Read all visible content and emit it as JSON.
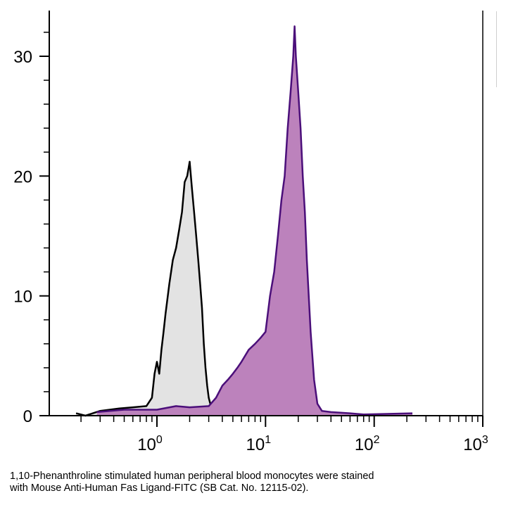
{
  "caption": {
    "line1": "1,10-Phenanthroline stimulated human peripheral blood monocytes were stained",
    "line2": "with Mouse Anti-Human Fas Ligand-FITC (SB Cat. No. 12115-02)."
  },
  "chart_data": {
    "type": "area",
    "title": "",
    "xlabel": "",
    "ylabel": "",
    "x_scale": "log",
    "xlim": [
      0.15,
      1000
    ],
    "ylim": [
      0,
      33
    ],
    "grid": false,
    "x_ticks": [
      {
        "value": 1,
        "base": "10",
        "exp": "0"
      },
      {
        "value": 10,
        "base": "10",
        "exp": "1"
      },
      {
        "value": 100,
        "base": "10",
        "exp": "2"
      },
      {
        "value": 1000,
        "base": "10",
        "exp": "3"
      }
    ],
    "y_ticks": [
      0,
      10,
      20,
      30
    ],
    "series": [
      {
        "fill": "#e3e3e3",
        "stroke": "#000000",
        "points": [
          [
            0.18,
            0.2
          ],
          [
            0.22,
            0
          ],
          [
            0.3,
            0.4
          ],
          [
            0.45,
            0.6
          ],
          [
            0.6,
            0.7
          ],
          [
            0.8,
            0.8
          ],
          [
            0.9,
            1.5
          ],
          [
            0.95,
            3.5
          ],
          [
            1.0,
            4.5
          ],
          [
            1.05,
            3.5
          ],
          [
            1.1,
            5.5
          ],
          [
            1.15,
            7
          ],
          [
            1.2,
            8.5
          ],
          [
            1.3,
            11
          ],
          [
            1.4,
            13
          ],
          [
            1.5,
            14
          ],
          [
            1.6,
            15.5
          ],
          [
            1.7,
            17
          ],
          [
            1.8,
            19.5
          ],
          [
            1.9,
            20
          ],
          [
            2.0,
            21.2
          ],
          [
            2.1,
            19
          ],
          [
            2.2,
            17
          ],
          [
            2.3,
            15
          ],
          [
            2.4,
            13
          ],
          [
            2.5,
            11
          ],
          [
            2.6,
            9
          ],
          [
            2.7,
            6
          ],
          [
            2.8,
            4
          ],
          [
            2.9,
            2.5
          ],
          [
            3.0,
            1.5
          ],
          [
            3.2,
            0.5
          ],
          [
            3.5,
            0.2
          ],
          [
            4.0,
            0
          ]
        ]
      },
      {
        "fill": "#bc82bc",
        "stroke": "#4b0f7a",
        "points": [
          [
            0.28,
            0.3
          ],
          [
            0.5,
            0.5
          ],
          [
            0.8,
            0.5
          ],
          [
            1.0,
            0.5
          ],
          [
            1.5,
            0.8
          ],
          [
            2.0,
            0.7
          ],
          [
            3.0,
            0.8
          ],
          [
            3.5,
            1.5
          ],
          [
            4.0,
            2.5
          ],
          [
            4.5,
            3
          ],
          [
            5.0,
            3.5
          ],
          [
            5.5,
            4
          ],
          [
            6.0,
            4.5
          ],
          [
            7.0,
            5.5
          ],
          [
            8.0,
            6
          ],
          [
            9.0,
            6.5
          ],
          [
            10.0,
            7
          ],
          [
            11.0,
            10
          ],
          [
            12.0,
            12
          ],
          [
            13.0,
            15
          ],
          [
            14.0,
            18
          ],
          [
            15.0,
            20
          ],
          [
            16.0,
            24
          ],
          [
            17.0,
            27
          ],
          [
            18.0,
            30
          ],
          [
            18.5,
            32.5
          ],
          [
            19.0,
            30
          ],
          [
            20.0,
            27
          ],
          [
            21.0,
            24
          ],
          [
            22.0,
            20
          ],
          [
            23.0,
            17
          ],
          [
            24.0,
            13
          ],
          [
            25.0,
            10
          ],
          [
            26.0,
            7
          ],
          [
            28.0,
            3
          ],
          [
            30.0,
            1
          ],
          [
            33.0,
            0.4
          ],
          [
            40.0,
            0.3
          ],
          [
            60.0,
            0.2
          ],
          [
            80.0,
            0.1
          ],
          [
            225.0,
            0.2
          ]
        ]
      }
    ]
  }
}
